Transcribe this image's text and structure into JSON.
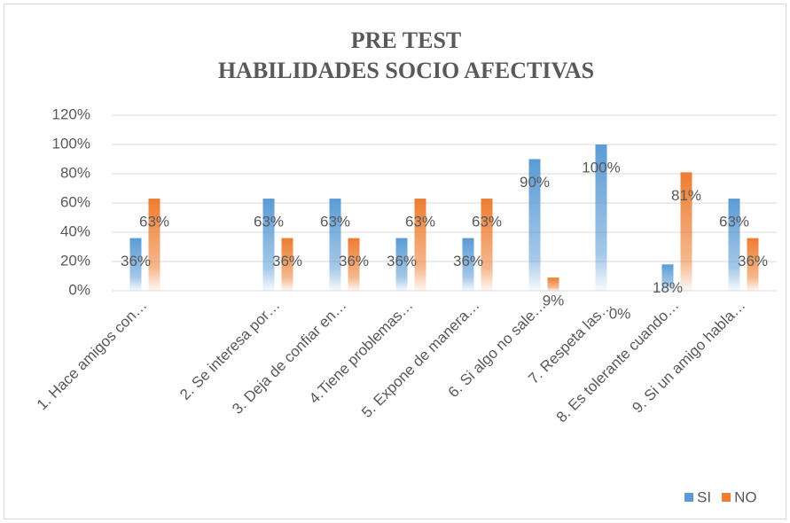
{
  "chart_data": {
    "type": "bar",
    "title": [
      "PRE TEST",
      "HABILIDADES SOCIO AFECTIVAS"
    ],
    "categories": [
      "1. Hace amigos con…",
      null,
      "2. Se interesa por…",
      "3. Deja de confiar en…",
      "4.Tiene problemas…",
      "5. Expone de manera…",
      "6. Si algo no sale…",
      "7. Respeta las…",
      "8. Es tolerante cuando…",
      "9. Si un amigo habla…"
    ],
    "series": [
      {
        "name": "SI",
        "color": "#5b9bd5",
        "values": [
          36,
          null,
          63,
          63,
          36,
          36,
          90,
          100,
          18,
          63
        ],
        "value_labels": [
          "36%",
          null,
          "63%",
          "63%",
          "36%",
          "36%",
          "90%",
          "100%",
          "18%",
          "63%"
        ]
      },
      {
        "name": "NO",
        "color": "#ed7d31",
        "values": [
          63,
          null,
          36,
          36,
          63,
          63,
          9,
          0,
          81,
          36
        ],
        "value_labels": [
          "63%",
          null,
          "36%",
          "36%",
          "63%",
          "63%",
          "9%",
          "0%",
          "81%",
          "36%"
        ]
      }
    ],
    "ylim": [
      0,
      120
    ],
    "yticks": [
      {
        "value": 0,
        "label": "0%"
      },
      {
        "value": 20,
        "label": "20%"
      },
      {
        "value": 40,
        "label": "40%"
      },
      {
        "value": 60,
        "label": "60%"
      },
      {
        "value": 80,
        "label": "80%"
      },
      {
        "value": 100,
        "label": "100%"
      },
      {
        "value": 120,
        "label": "120%"
      }
    ],
    "grid": true,
    "legend": "bottom-right"
  }
}
